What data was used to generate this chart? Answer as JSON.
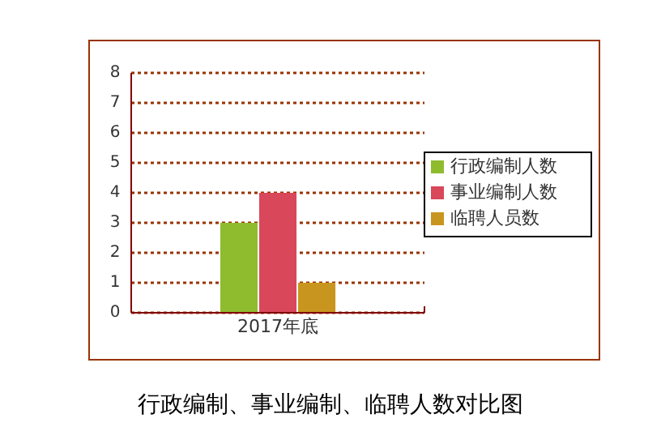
{
  "chart_data": {
    "type": "bar",
    "title": "行政编制、事业编制、临聘人数对比图",
    "categories": [
      "2017年底"
    ],
    "series": [
      {
        "name": "行政编制人数",
        "color": "#8fbc2f",
        "values": [
          3
        ]
      },
      {
        "name": "事业编制人数",
        "color": "#d9475a",
        "values": [
          4
        ]
      },
      {
        "name": "临聘人员数",
        "color": "#c8961e",
        "values": [
          1
        ]
      }
    ],
    "ylim": [
      0,
      8
    ],
    "yticks": [
      0,
      1,
      2,
      3,
      4,
      5,
      6,
      7,
      8
    ],
    "grid": "y",
    "legend": "right"
  }
}
